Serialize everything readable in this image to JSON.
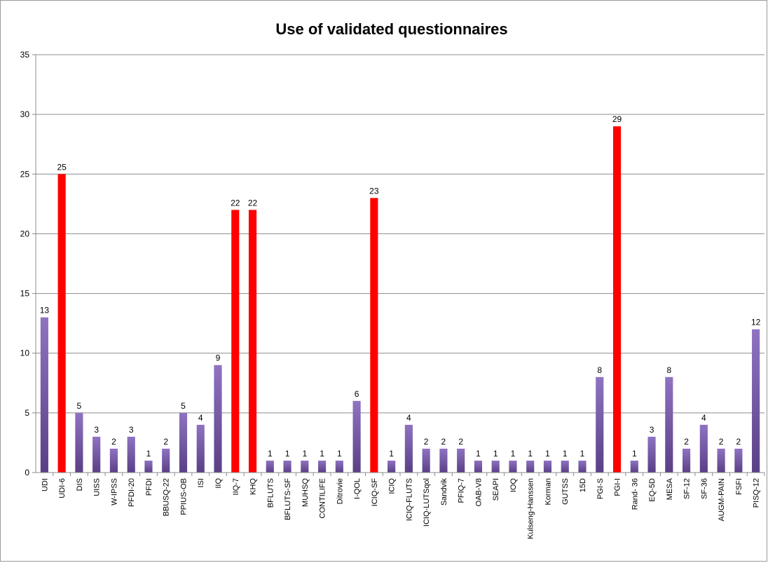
{
  "chart_data": {
    "type": "bar",
    "title": "Use of validated questionnaires",
    "xlabel": "",
    "ylabel": "",
    "ylim": [
      0,
      35
    ],
    "yticks": [
      0,
      5,
      10,
      15,
      20,
      25,
      30,
      35
    ],
    "grid": true,
    "legend": "none",
    "colors": {
      "default": "#7a5ca8",
      "highlight": "#ff0000"
    },
    "categories": [
      "UDI",
      "UDI-6",
      "DIS",
      "UISS",
      "W-IPSS",
      "PFDI-20",
      "PFDI",
      "BBUSQ-22",
      "PPIUS-OB",
      "ISI",
      "IIQ",
      "IIQ-7",
      "KHQ",
      "BFLUTS",
      "BFLUTS-SF",
      "MUHSQ",
      "CONTILIFE",
      "Ditrovie",
      "I-QOL",
      "ICIQ-SF",
      "ICIQ",
      "ICIQ-FLUTS",
      "ICIQ-LUTSqol",
      "Sandvik",
      "PFIQ-7",
      "OAB-V8",
      "SEAPI",
      "IOQ",
      "Kulseng-Hanssen",
      "Korman",
      "GUTSS",
      "15D",
      "PGI-S",
      "PGI-I",
      "Rand- 36",
      "EQ-5D",
      "MESA",
      "SF-12",
      "SF-36",
      "AUGM-PAIN",
      "FSFI",
      "PISQ-12"
    ],
    "values": [
      13,
      25,
      5,
      3,
      2,
      3,
      1,
      2,
      5,
      4,
      9,
      22,
      22,
      1,
      1,
      1,
      1,
      1,
      6,
      23,
      1,
      4,
      2,
      2,
      2,
      1,
      1,
      1,
      1,
      1,
      1,
      1,
      8,
      29,
      1,
      3,
      8,
      2,
      4,
      2,
      2,
      12
    ],
    "highlighted": [
      "UDI-6",
      "IIQ-7",
      "KHQ",
      "ICIQ-SF",
      "PGI-I"
    ]
  }
}
